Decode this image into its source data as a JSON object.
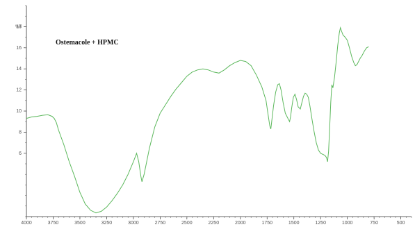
{
  "chart_data": {
    "type": "line",
    "title": "Ostemacole + HPMC",
    "xlabel": "",
    "ylabel": "%T",
    "x_reversed": true,
    "xlim": [
      4000,
      400
    ],
    "ylim": [
      0,
      20
    ],
    "x_ticks": [
      "4000",
      "3750",
      "3500",
      "3250",
      "3000",
      "2750",
      "2500",
      "2250",
      "2000",
      "1750",
      "1500",
      "1250",
      "1000",
      "750",
      "500"
    ],
    "y_ticks": [
      "6",
      "8",
      "10",
      "12",
      "14",
      "16",
      "18"
    ],
    "grid": false,
    "line_color": "#5cb85c",
    "series": [
      {
        "points": [
          [
            4000,
            9.3
          ],
          [
            3950,
            9.45
          ],
          [
            3900,
            9.5
          ],
          [
            3850,
            9.6
          ],
          [
            3800,
            9.65
          ],
          [
            3760,
            9.5
          ],
          [
            3740,
            9.3
          ],
          [
            3720,
            8.9
          ],
          [
            3700,
            8.2
          ],
          [
            3650,
            6.8
          ],
          [
            3600,
            5.2
          ],
          [
            3550,
            3.8
          ],
          [
            3500,
            2.3
          ],
          [
            3450,
            1.2
          ],
          [
            3400,
            0.6
          ],
          [
            3350,
            0.35
          ],
          [
            3300,
            0.5
          ],
          [
            3250,
            0.9
          ],
          [
            3200,
            1.5
          ],
          [
            3150,
            2.2
          ],
          [
            3100,
            3.0
          ],
          [
            3050,
            4.0
          ],
          [
            3000,
            5.2
          ],
          [
            2970,
            6.0
          ],
          [
            2950,
            5.2
          ],
          [
            2930,
            3.8
          ],
          [
            2920,
            3.3
          ],
          [
            2900,
            4.0
          ],
          [
            2880,
            5.0
          ],
          [
            2850,
            6.5
          ],
          [
            2800,
            8.5
          ],
          [
            2750,
            9.8
          ],
          [
            2700,
            10.6
          ],
          [
            2650,
            11.4
          ],
          [
            2600,
            12.1
          ],
          [
            2550,
            12.7
          ],
          [
            2500,
            13.3
          ],
          [
            2450,
            13.7
          ],
          [
            2400,
            13.9
          ],
          [
            2350,
            14.0
          ],
          [
            2300,
            13.9
          ],
          [
            2250,
            13.7
          ],
          [
            2200,
            13.6
          ],
          [
            2150,
            13.9
          ],
          [
            2100,
            14.3
          ],
          [
            2050,
            14.6
          ],
          [
            2000,
            14.8
          ],
          [
            1950,
            14.7
          ],
          [
            1900,
            14.3
          ],
          [
            1850,
            13.4
          ],
          [
            1800,
            12.3
          ],
          [
            1760,
            11.0
          ],
          [
            1740,
            9.6
          ],
          [
            1725,
            8.6
          ],
          [
            1715,
            8.3
          ],
          [
            1705,
            9.2
          ],
          [
            1690,
            10.5
          ],
          [
            1670,
            11.8
          ],
          [
            1650,
            12.5
          ],
          [
            1635,
            12.6
          ],
          [
            1620,
            12.0
          ],
          [
            1600,
            10.8
          ],
          [
            1580,
            9.8
          ],
          [
            1565,
            9.5
          ],
          [
            1550,
            9.2
          ],
          [
            1540,
            9.0
          ],
          [
            1530,
            9.5
          ],
          [
            1520,
            10.3
          ],
          [
            1505,
            11.3
          ],
          [
            1490,
            11.6
          ],
          [
            1475,
            11.1
          ],
          [
            1460,
            10.4
          ],
          [
            1440,
            10.2
          ],
          [
            1425,
            10.8
          ],
          [
            1410,
            11.4
          ],
          [
            1395,
            11.7
          ],
          [
            1380,
            11.6
          ],
          [
            1365,
            11.3
          ],
          [
            1350,
            10.5
          ],
          [
            1330,
            9.2
          ],
          [
            1310,
            8.0
          ],
          [
            1290,
            7.0
          ],
          [
            1270,
            6.3
          ],
          [
            1250,
            6.0
          ],
          [
            1230,
            5.9
          ],
          [
            1210,
            5.8
          ],
          [
            1195,
            5.6
          ],
          [
            1185,
            5.2
          ],
          [
            1175,
            6.2
          ],
          [
            1165,
            8.5
          ],
          [
            1155,
            10.8
          ],
          [
            1145,
            12.5
          ],
          [
            1135,
            12.2
          ],
          [
            1120,
            13.2
          ],
          [
            1105,
            14.6
          ],
          [
            1090,
            16.2
          ],
          [
            1075,
            17.4
          ],
          [
            1065,
            17.9
          ],
          [
            1055,
            17.6
          ],
          [
            1040,
            17.2
          ],
          [
            1020,
            17.0
          ],
          [
            1000,
            16.7
          ],
          [
            980,
            16.0
          ],
          [
            960,
            15.2
          ],
          [
            940,
            14.6
          ],
          [
            925,
            14.3
          ],
          [
            910,
            14.4
          ],
          [
            895,
            14.7
          ],
          [
            880,
            15.0
          ],
          [
            860,
            15.3
          ],
          [
            840,
            15.7
          ],
          [
            820,
            16.0
          ],
          [
            800,
            16.1
          ]
        ]
      }
    ]
  }
}
